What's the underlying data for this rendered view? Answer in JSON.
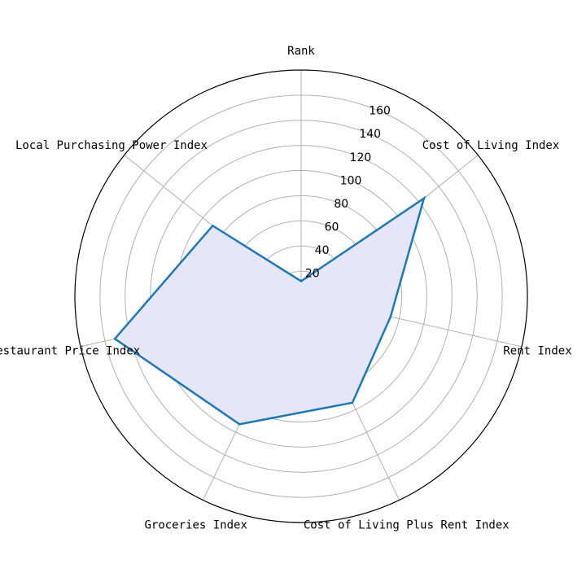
{
  "chart_data": {
    "type": "radar",
    "categories": [
      "Rank",
      "Cost of Living Index",
      "Rent Index",
      "Cost of Living Plus Rent Index",
      "Groceries Index",
      "Restaurant Price Index",
      "Local Purchasing Power Index"
    ],
    "series": [
      {
        "values": [
          12,
          125,
          73,
          94,
          113,
          152,
          90
        ],
        "line_color": "#1f77b4",
        "fill_color": "#e6e6fb"
      }
    ],
    "radial_ticks": [
      20,
      40,
      60,
      80,
      100,
      120,
      140,
      160
    ],
    "r_max": 180,
    "grid": true,
    "frame_color": "#000000",
    "grid_color": "#b0b0b0"
  }
}
